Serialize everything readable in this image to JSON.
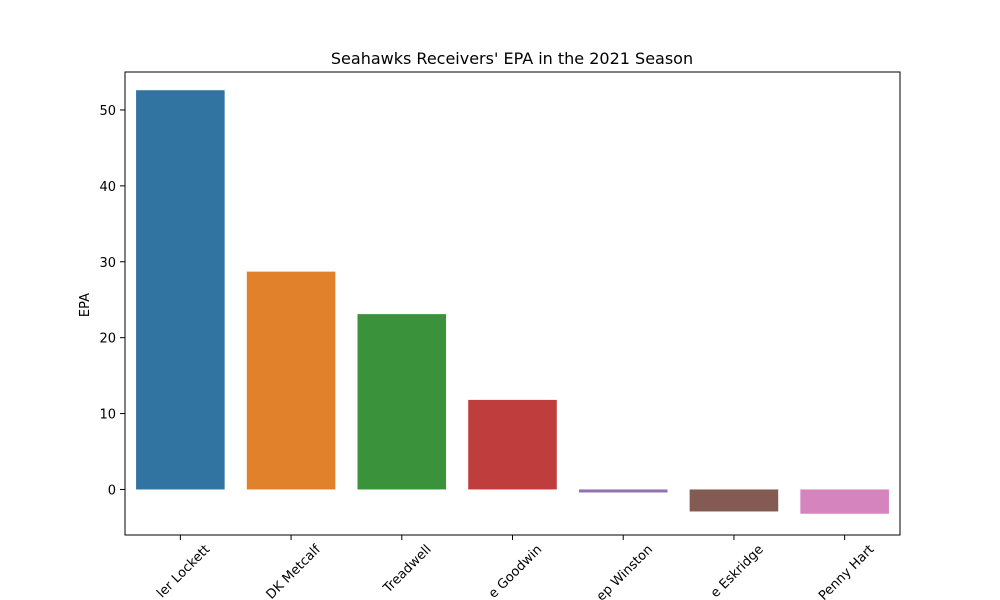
{
  "chart_data": {
    "type": "bar",
    "title": "Seahawks Receivers' EPA in the 2021 Season",
    "xlabel": "",
    "ylabel": "EPA",
    "categories": [
      "Tyler Lockett",
      "DK Metcalf",
      "Freddie Swain Treadwell",
      "Marquise Goodwin",
      "Penny / Jamal Winston",
      "Dee Eskridge",
      "Penny Hart"
    ],
    "tick_labels_visible": [
      "ler Lockett",
      "DK Metcalf",
      "Treadwell",
      "e Goodwin",
      "ep Winston",
      "e Eskridge",
      "Penny Hart"
    ],
    "values": [
      52.6,
      28.7,
      23.1,
      11.8,
      -0.4,
      -2.9,
      -3.2
    ],
    "colors": [
      "#3274a1",
      "#e1812c",
      "#3a923a",
      "#c03d3e",
      "#9372b2",
      "#845b53",
      "#d684bd"
    ],
    "ylim": [
      -6,
      55
    ],
    "yticks": [
      0,
      10,
      20,
      30,
      40,
      50
    ],
    "grid": false,
    "legend": false
  }
}
